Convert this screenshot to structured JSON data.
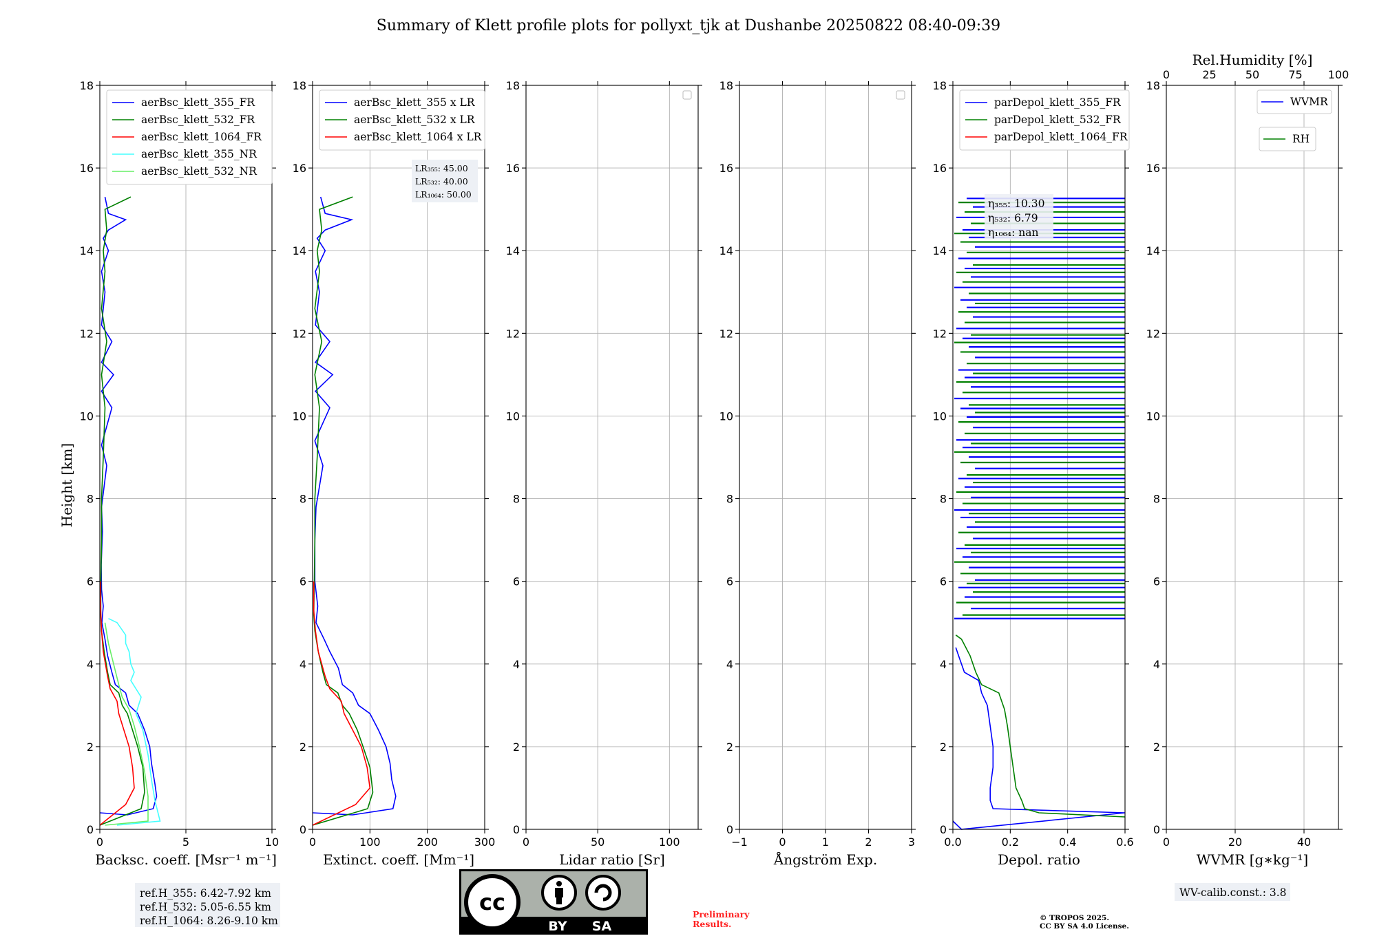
{
  "figure": {
    "title": "Summary of Klett profile plots for pollyxt_tjk at Dushanbe 20250822 08:40-09:39",
    "ylabel": "Height [km]"
  },
  "colors": {
    "ch355": "#0000ff",
    "ch532": "#008000",
    "ch1064": "#ff0000",
    "ch355_nr": "#44ffff",
    "ch532_nr": "#66ee66",
    "preliminary": "#ff2222"
  },
  "chart_data": [
    {
      "type": "line",
      "xlabel": "Backsc. coeff. [Msr⁻¹ m⁻¹]",
      "ylabel": "Height [km]",
      "xlim": [
        0,
        10
      ],
      "ylim": [
        0,
        18
      ],
      "xticks": [
        "0",
        "5",
        "10"
      ],
      "yticks": [
        "0",
        "2",
        "4",
        "6",
        "8",
        "10",
        "12",
        "14",
        "16",
        "18"
      ],
      "grid": true,
      "legend": "top-left",
      "series": [
        {
          "name": "aerBsc_klett_355_FR",
          "color": "#0000ff",
          "points": [
            [
              0,
              0.4
            ],
            [
              1.6,
              0.35
            ],
            [
              3.1,
              0.5
            ],
            [
              3.3,
              0.8
            ],
            [
              3.2,
              1.1
            ],
            [
              3.0,
              1.6
            ],
            [
              2.9,
              2.0
            ],
            [
              2.6,
              2.4
            ],
            [
              2.2,
              2.8
            ],
            [
              1.7,
              3.0
            ],
            [
              1.5,
              3.3
            ],
            [
              0.9,
              3.5
            ],
            [
              0.7,
              3.8
            ],
            [
              0.45,
              4.2
            ],
            [
              0.3,
              4.6
            ],
            [
              0.12,
              5.0
            ],
            [
              0.2,
              5.4
            ],
            [
              0.1,
              5.8
            ],
            [
              0.08,
              6.4
            ],
            [
              0.15,
              7.2
            ],
            [
              0.1,
              7.8
            ],
            [
              0.4,
              8.8
            ],
            [
              0.1,
              9.3
            ],
            [
              0.7,
              10.2
            ],
            [
              0.1,
              10.6
            ],
            [
              0.8,
              11.0
            ],
            [
              0.1,
              11.3
            ],
            [
              0.7,
              11.8
            ],
            [
              0.1,
              12.2
            ],
            [
              0.3,
              13.0
            ],
            [
              0.1,
              13.5
            ],
            [
              0.5,
              14.0
            ],
            [
              0.2,
              14.3
            ],
            [
              0.5,
              14.5
            ],
            [
              1.5,
              14.75
            ],
            [
              0.5,
              14.9
            ],
            [
              0.3,
              15.3
            ]
          ]
        },
        {
          "name": "aerBsc_klett_532_FR",
          "color": "#008000",
          "points": [
            [
              0,
              0.1
            ],
            [
              2.4,
              0.5
            ],
            [
              2.6,
              0.9
            ],
            [
              2.5,
              1.5
            ],
            [
              2.2,
              2.0
            ],
            [
              1.9,
              2.4
            ],
            [
              1.6,
              2.8
            ],
            [
              1.3,
              3.0
            ],
            [
              1.1,
              3.3
            ],
            [
              0.6,
              3.5
            ],
            [
              0.45,
              3.8
            ],
            [
              0.25,
              4.3
            ],
            [
              0.1,
              4.8
            ],
            [
              0.05,
              5.2
            ],
            [
              0.06,
              6.0
            ],
            [
              0.1,
              7.0
            ],
            [
              0.1,
              8.0
            ],
            [
              0.2,
              9.0
            ],
            [
              0.3,
              10.2
            ],
            [
              0.1,
              11.0
            ],
            [
              0.4,
              11.8
            ],
            [
              0.1,
              12.6
            ],
            [
              0.3,
              13.5
            ],
            [
              0.2,
              14.0
            ],
            [
              0.4,
              14.5
            ],
            [
              0.3,
              15.0
            ],
            [
              1.8,
              15.3
            ]
          ]
        },
        {
          "name": "aerBsc_klett_1064_FR",
          "color": "#ff0000",
          "points": [
            [
              0,
              0.1
            ],
            [
              1.5,
              0.6
            ],
            [
              2.0,
              1.0
            ],
            [
              1.9,
              1.5
            ],
            [
              1.7,
              2.0
            ],
            [
              1.4,
              2.4
            ],
            [
              1.1,
              2.8
            ],
            [
              1.0,
              3.1
            ],
            [
              0.6,
              3.4
            ],
            [
              0.45,
              3.7
            ],
            [
              0.2,
              4.3
            ],
            [
              0.1,
              4.8
            ],
            [
              0.05,
              5.3
            ],
            [
              0.04,
              6.0
            ]
          ]
        },
        {
          "name": "aerBsc_klett_355_NR",
          "color": "#44ffff",
          "points": [
            [
              1.0,
              0.1
            ],
            [
              3.5,
              0.2
            ],
            [
              3.2,
              0.7
            ],
            [
              3.0,
              1.2
            ],
            [
              2.8,
              1.8
            ],
            [
              2.5,
              2.4
            ],
            [
              2.1,
              2.8
            ],
            [
              2.4,
              3.2
            ],
            [
              1.8,
              3.6
            ],
            [
              2.0,
              3.8
            ],
            [
              1.8,
              4.0
            ],
            [
              1.7,
              4.3
            ],
            [
              1.5,
              4.5
            ],
            [
              1.5,
              4.7
            ],
            [
              1.0,
              5.0
            ],
            [
              0.5,
              5.1
            ]
          ]
        },
        {
          "name": "aerBsc_klett_532_NR",
          "color": "#66ee66",
          "points": [
            [
              0.3,
              0.1
            ],
            [
              2.8,
              0.2
            ],
            [
              2.8,
              0.8
            ],
            [
              2.6,
              1.4
            ],
            [
              2.3,
              2.0
            ],
            [
              2.0,
              2.5
            ],
            [
              1.7,
              2.9
            ],
            [
              1.3,
              3.2
            ],
            [
              1.1,
              3.5
            ],
            [
              0.8,
              4.0
            ],
            [
              0.5,
              4.5
            ],
            [
              0.3,
              5.0
            ]
          ]
        }
      ]
    },
    {
      "type": "line",
      "xlabel": "Extinct. coeff. [Mm⁻¹]",
      "xlim": [
        0,
        300
      ],
      "ylim": [
        0,
        18
      ],
      "xticks": [
        "0",
        "100",
        "200",
        "300"
      ],
      "yticks": [
        "0",
        "2",
        "4",
        "6",
        "8",
        "10",
        "12",
        "14",
        "16",
        "18"
      ],
      "grid": true,
      "legend": "top-left",
      "lidar_ratios": [
        "LR₃₅₅: 45.00",
        "LR₅₃₂: 40.00",
        "LR₁₀₆₄: 50.00"
      ],
      "series": [
        {
          "name": "aerBsc_klett_355 x LR",
          "color": "#0000ff",
          "points": [
            [
              0,
              0.4
            ],
            [
              70,
              0.35
            ],
            [
              140,
              0.5
            ],
            [
              145,
              0.8
            ],
            [
              138,
              1.2
            ],
            [
              135,
              1.6
            ],
            [
              128,
              2.0
            ],
            [
              115,
              2.4
            ],
            [
              100,
              2.8
            ],
            [
              80,
              3.0
            ],
            [
              70,
              3.3
            ],
            [
              52,
              3.5
            ],
            [
              45,
              3.9
            ],
            [
              30,
              4.3
            ],
            [
              20,
              4.6
            ],
            [
              6,
              5.0
            ],
            [
              9,
              5.4
            ],
            [
              4,
              6.0
            ],
            [
              4,
              7.0
            ],
            [
              6,
              7.8
            ],
            [
              18,
              8.8
            ],
            [
              4,
              9.4
            ],
            [
              30,
              10.2
            ],
            [
              5,
              10.6
            ],
            [
              35,
              11.0
            ],
            [
              5,
              11.3
            ],
            [
              30,
              11.8
            ],
            [
              5,
              12.2
            ],
            [
              12,
              13.0
            ],
            [
              5,
              13.5
            ],
            [
              22,
              14.0
            ],
            [
              8,
              14.3
            ],
            [
              22,
              14.5
            ],
            [
              68,
              14.75
            ],
            [
              22,
              14.9
            ],
            [
              14,
              15.3
            ]
          ]
        },
        {
          "name": "aerBsc_klett_532 x LR",
          "color": "#008000",
          "points": [
            [
              0,
              0.1
            ],
            [
              96,
              0.5
            ],
            [
              105,
              0.9
            ],
            [
              100,
              1.5
            ],
            [
              88,
              2.0
            ],
            [
              78,
              2.4
            ],
            [
              64,
              2.8
            ],
            [
              52,
              3.0
            ],
            [
              44,
              3.3
            ],
            [
              24,
              3.5
            ],
            [
              18,
              3.8
            ],
            [
              10,
              4.3
            ],
            [
              4,
              4.8
            ],
            [
              2,
              5.2
            ],
            [
              3,
              6.0
            ],
            [
              4,
              7.0
            ],
            [
              4,
              8.0
            ],
            [
              8,
              9.0
            ],
            [
              12,
              10.2
            ],
            [
              4,
              11.0
            ],
            [
              16,
              11.8
            ],
            [
              4,
              12.6
            ],
            [
              12,
              13.5
            ],
            [
              8,
              14.0
            ],
            [
              16,
              14.5
            ],
            [
              12,
              15.0
            ],
            [
              70,
              15.3
            ]
          ]
        },
        {
          "name": "aerBsc_klett_1064 x LR",
          "color": "#ff0000",
          "points": [
            [
              0,
              0.1
            ],
            [
              75,
              0.6
            ],
            [
              100,
              1.0
            ],
            [
              95,
              1.5
            ],
            [
              85,
              2.0
            ],
            [
              70,
              2.4
            ],
            [
              55,
              2.8
            ],
            [
              50,
              3.1
            ],
            [
              30,
              3.4
            ],
            [
              22,
              3.7
            ],
            [
              10,
              4.3
            ],
            [
              5,
              4.8
            ],
            [
              2,
              5.3
            ],
            [
              2,
              6.0
            ]
          ]
        }
      ]
    },
    {
      "type": "line",
      "xlabel": "Lidar ratio [Sr]",
      "xlim": [
        0,
        120
      ],
      "ylim": [
        0,
        18
      ],
      "xticks": [
        "0",
        "50",
        "100"
      ],
      "yticks": [
        "0",
        "2",
        "4",
        "6",
        "8",
        "10",
        "12",
        "14",
        "16",
        "18"
      ],
      "grid": true,
      "legend": "top-right",
      "series": []
    },
    {
      "type": "line",
      "xlabel": "Ångström Exp.",
      "xlim": [
        -1,
        3
      ],
      "ylim": [
        0,
        18
      ],
      "xticks": [
        "−1",
        "0",
        "1",
        "2",
        "3"
      ],
      "yticks": [
        "0",
        "2",
        "4",
        "6",
        "8",
        "10",
        "12",
        "14",
        "16",
        "18"
      ],
      "grid": true,
      "legend": "top-right",
      "series": []
    },
    {
      "type": "line",
      "xlabel": "Depol. ratio",
      "xlim": [
        0,
        0.6
      ],
      "ylim": [
        0,
        18
      ],
      "xticks": [
        "0.0",
        "0.2",
        "0.4",
        "0.6"
      ],
      "yticks": [
        "0",
        "2",
        "4",
        "6",
        "8",
        "10",
        "12",
        "14",
        "16",
        "18"
      ],
      "grid": true,
      "legend": "top-left",
      "eta": [
        "η₃₅₅: 10.30",
        "η₅₃₂: 6.79",
        "η₁₀₆₄: nan"
      ],
      "noisy_region": [
        5.1,
        15.3
      ],
      "series": [
        {
          "name": "parDepol_klett_355_FR",
          "color": "#0000ff",
          "points": [
            [
              0.0,
              0.2
            ],
            [
              0.03,
              0.0
            ],
            [
              0.6,
              0.4
            ],
            [
              0.14,
              0.5
            ],
            [
              0.13,
              0.7
            ],
            [
              0.13,
              1.0
            ],
            [
              0.14,
              1.5
            ],
            [
              0.14,
              2.0
            ],
            [
              0.13,
              2.5
            ],
            [
              0.12,
              3.0
            ],
            [
              0.1,
              3.3
            ],
            [
              0.09,
              3.6
            ],
            [
              0.04,
              3.8
            ],
            [
              0.02,
              4.2
            ],
            [
              0.01,
              4.4
            ]
          ]
        },
        {
          "name": "parDepol_klett_532_FR",
          "color": "#008000",
          "points": [
            [
              0.6,
              0.3
            ],
            [
              0.3,
              0.4
            ],
            [
              0.25,
              0.5
            ],
            [
              0.24,
              0.7
            ],
            [
              0.22,
              1.0
            ],
            [
              0.21,
              1.5
            ],
            [
              0.2,
              2.0
            ],
            [
              0.19,
              2.5
            ],
            [
              0.18,
              2.9
            ],
            [
              0.16,
              3.3
            ],
            [
              0.1,
              3.5
            ],
            [
              0.08,
              3.8
            ],
            [
              0.06,
              4.2
            ],
            [
              0.03,
              4.6
            ],
            [
              0.01,
              4.7
            ]
          ]
        },
        {
          "name": "parDepol_klett_1064_FR",
          "color": "#ff0000",
          "points": []
        }
      ]
    },
    {
      "type": "line",
      "xlabel": "WVMR [g∗kg⁻¹]",
      "top_xlabel": "Rel.Humidity [%]",
      "xlim": [
        0,
        50
      ],
      "ylim": [
        0,
        18
      ],
      "xticks": [
        "0",
        "20",
        "40"
      ],
      "top_xticks": [
        "0",
        "25",
        "50",
        "75",
        "100"
      ],
      "yticks": [
        "0",
        "2",
        "4",
        "6",
        "8",
        "10",
        "12",
        "14",
        "16",
        "18"
      ],
      "grid": true,
      "legend": "top-right",
      "series": [
        {
          "name": "WVMR",
          "color": "#0000ff",
          "points": []
        },
        {
          "name": "RH",
          "color": "#008000",
          "points": []
        }
      ]
    }
  ],
  "footer": {
    "ref_h": [
      "ref.H_355: 6.42-7.92 km",
      "ref.H_532: 5.05-6.55 km",
      "ref.H_1064: 8.26-9.10 km"
    ],
    "wv_calib": "WV-calib.const.: 3.8",
    "preliminary": [
      "Preliminary",
      "Results."
    ],
    "copyright": [
      "© TROPOS 2025.",
      "CC BY SA 4.0 License."
    ],
    "cc_badge": {
      "icon": "cc-by-sa-icon",
      "labels": [
        "cc",
        "BY",
        "SA"
      ]
    }
  }
}
